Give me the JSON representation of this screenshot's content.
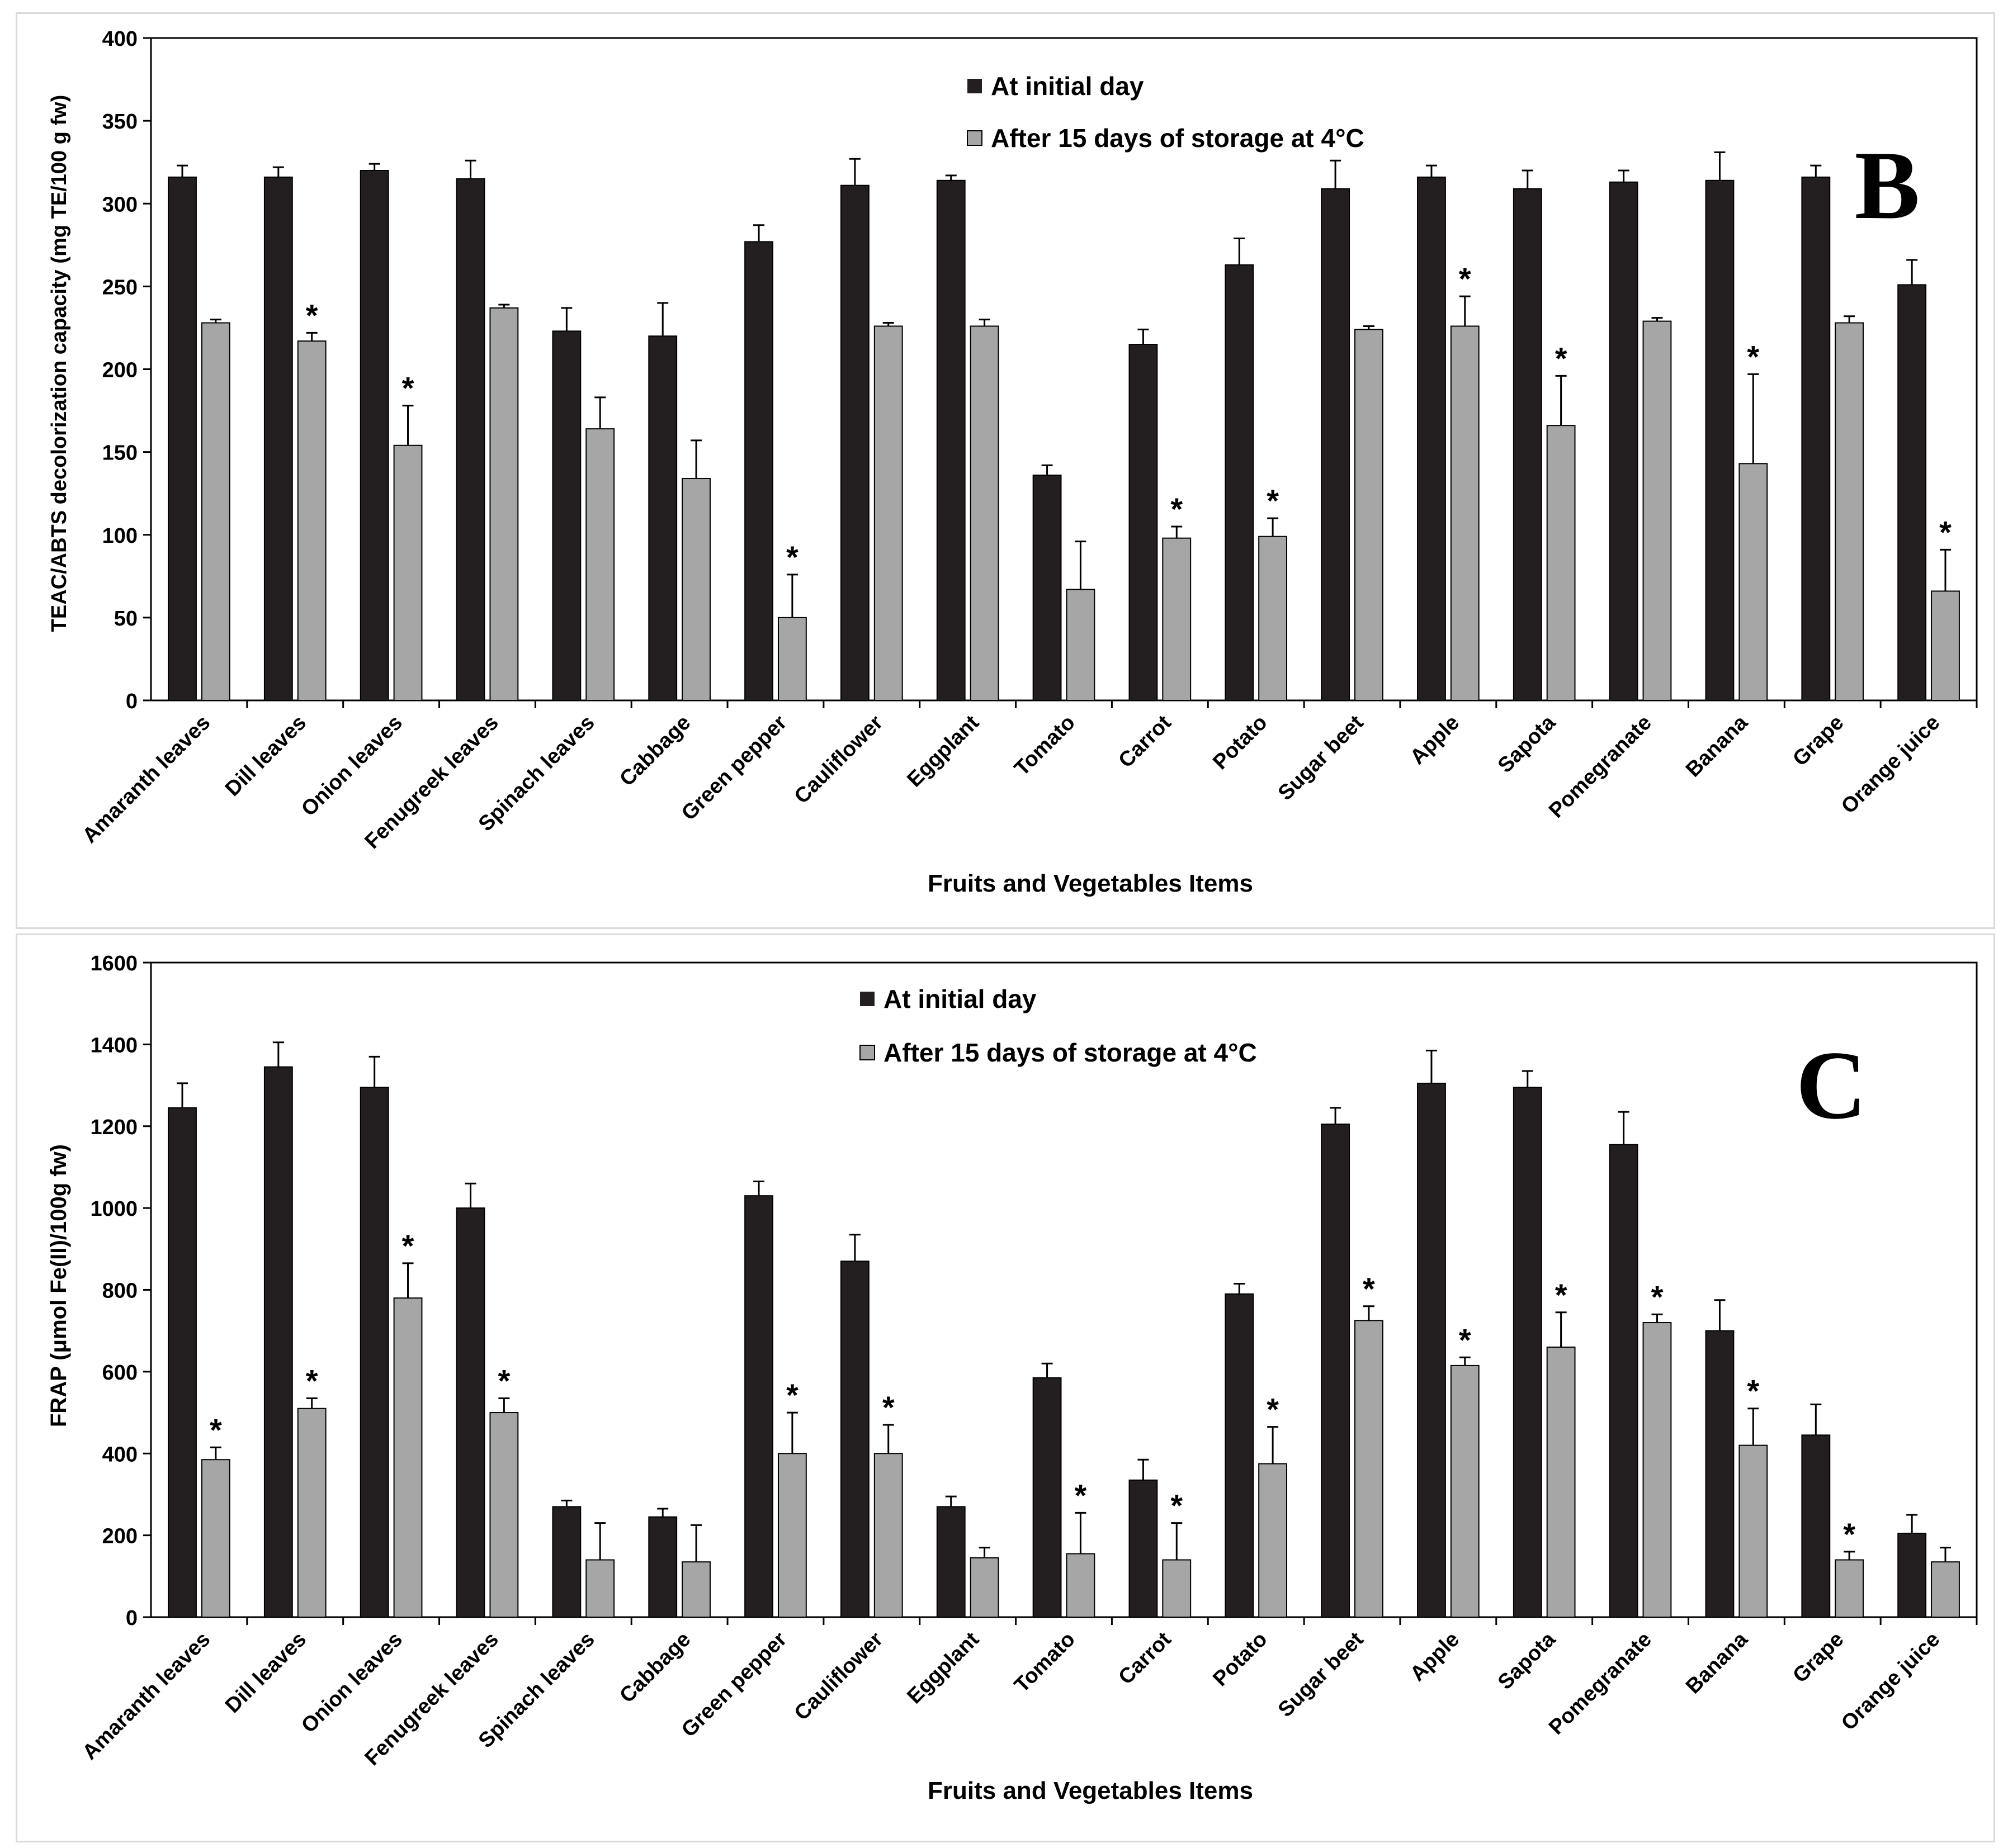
{
  "colors": {
    "initial": "#231f20",
    "stored": "#a6a6a6",
    "axis": "#000000",
    "frame": "#d9d9d9"
  },
  "xlabel_text": "Fruits and Vegetables Items",
  "legend": {
    "initial": "At initial day",
    "stored": "After 15 days of storage at 4°C"
  },
  "sig_marker": "*",
  "chart_data": [
    {
      "type": "bar",
      "panel": "B",
      "title": "",
      "xlabel": "Fruits and Vegetables Items",
      "ylabel": "TEAC/ABTS decolorization capacity (mg TE/100 g fw)",
      "ylim": [
        0,
        400
      ],
      "yticks": [
        0,
        50,
        100,
        150,
        200,
        250,
        300,
        350,
        400
      ],
      "legend_position": "top-center",
      "categories": [
        "Amaranth leaves",
        "Dill leaves",
        "Onion leaves",
        "Fenugreek leaves",
        "Spinach leaves",
        "Cabbage",
        "Green pepper",
        "Cauliflower",
        "Eggplant",
        "Tomato",
        "Carrot",
        "Potato",
        "Sugar beet",
        "Apple",
        "Sapota",
        "Pomegranate",
        "Banana",
        "Grape",
        "Orange juice"
      ],
      "series": [
        {
          "name": "At initial day",
          "values": [
            316,
            316,
            320,
            315,
            223,
            220,
            277,
            311,
            314,
            136,
            215,
            263,
            309,
            316,
            309,
            313,
            314,
            316,
            251
          ],
          "errors": [
            7,
            6,
            4,
            11,
            14,
            20,
            10,
            16,
            3,
            6,
            9,
            16,
            17,
            7,
            11,
            7,
            17,
            7,
            15
          ]
        },
        {
          "name": "After 15 days of storage at 4°C",
          "values": [
            228,
            217,
            154,
            237,
            164,
            134,
            50,
            226,
            226,
            67,
            98,
            99,
            224,
            226,
            166,
            229,
            143,
            228,
            66
          ],
          "errors": [
            2,
            5,
            24,
            2,
            19,
            23,
            26,
            2,
            4,
            29,
            7,
            11,
            2,
            18,
            30,
            2,
            54,
            4,
            25
          ],
          "significant": [
            false,
            true,
            true,
            false,
            false,
            false,
            true,
            false,
            false,
            false,
            true,
            true,
            false,
            true,
            true,
            false,
            true,
            false,
            true
          ]
        }
      ]
    },
    {
      "type": "bar",
      "panel": "C",
      "title": "",
      "xlabel": "Fruits and Vegetables Items",
      "ylabel": "FRAP (μmol Fe(II)/100g fw)",
      "ylim": [
        0,
        1600
      ],
      "yticks": [
        0,
        200,
        400,
        600,
        800,
        1000,
        1200,
        1400,
        1600
      ],
      "legend_position": "top-center",
      "categories": [
        "Amaranth leaves",
        "Dill leaves",
        "Onion leaves",
        "Fenugreek leaves",
        "Spinach leaves",
        "Cabbage",
        "Green pepper",
        "Cauliflower",
        "Eggplant",
        "Tomato",
        "Carrot",
        "Potato",
        "Sugar beet",
        "Apple",
        "Sapota",
        "Pomegranate",
        "Banana",
        "Grape",
        "Orange juice"
      ],
      "series": [
        {
          "name": "At initial day",
          "values": [
            1245,
            1345,
            1295,
            1000,
            270,
            245,
            1030,
            870,
            270,
            585,
            335,
            790,
            1205,
            1305,
            1295,
            1155,
            700,
            445,
            205
          ],
          "errors": [
            60,
            60,
            75,
            60,
            15,
            20,
            35,
            65,
            25,
            35,
            50,
            25,
            40,
            80,
            40,
            80,
            75,
            75,
            45
          ]
        },
        {
          "name": "After 15 days of storage at 4°C",
          "values": [
            385,
            510,
            780,
            500,
            140,
            135,
            400,
            400,
            145,
            155,
            140,
            375,
            725,
            615,
            660,
            720,
            420,
            140,
            135
          ],
          "errors": [
            30,
            25,
            85,
            35,
            90,
            90,
            100,
            70,
            25,
            100,
            90,
            90,
            35,
            20,
            85,
            20,
            90,
            20,
            35
          ],
          "significant": [
            true,
            true,
            true,
            true,
            false,
            false,
            true,
            true,
            false,
            true,
            true,
            true,
            true,
            true,
            true,
            true,
            true,
            true,
            false
          ]
        }
      ]
    }
  ]
}
